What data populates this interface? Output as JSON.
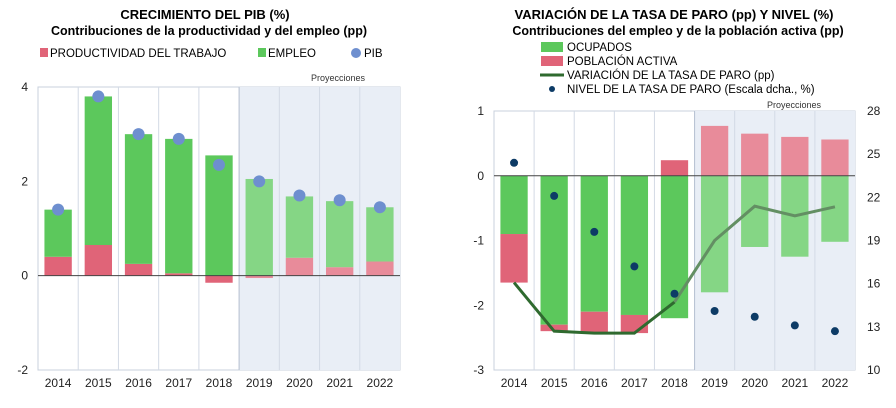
{
  "charts": [
    {
      "id": "gdp",
      "title": "CRECIMIENTO DEL PIB (%)",
      "subtitle": "Contribuciones de la productividad y del empleo (pp)",
      "projections_label": "Proyecciones",
      "legend": [
        {
          "label": "PRODUCTIVIDAD DEL TRABAJO",
          "color": "#e06478",
          "shape": "square"
        },
        {
          "label": "EMPLEO",
          "color": "#5cc85c",
          "shape": "square"
        },
        {
          "label": "PIB",
          "color": "#6e8fcf",
          "shape": "circle"
        }
      ]
    },
    {
      "id": "unemployment",
      "title": "VARIACIÓN DE LA TASA DE PARO (pp) Y NIVEL (%)",
      "subtitle": "Contribuciones del empleo y de la población activa (pp)",
      "projections_label": "Proyecciones",
      "legend": [
        {
          "label": "OCUPADOS",
          "color": "#5cc85c",
          "shape": "square"
        },
        {
          "label": "POBLACIÓN ACTIVA",
          "color": "#e06478",
          "shape": "square"
        },
        {
          "label": "VARIACIÓN DE LA TASA DE PARO (pp)",
          "color": "#2f6a2f",
          "shape": "line"
        },
        {
          "label": "NIVEL DE LA TASA DE PARO (Escala dcha., %)",
          "color": "#0d3b66",
          "shape": "circle"
        }
      ]
    }
  ],
  "chart_data": [
    {
      "type": "bar",
      "stacked": true,
      "categories": [
        "2014",
        "2015",
        "2016",
        "2017",
        "2018",
        "2019",
        "2020",
        "2021",
        "2022"
      ],
      "projection_from": "2019",
      "ylim": [
        -2,
        4
      ],
      "yticks": [
        -2,
        0,
        2,
        4
      ],
      "series": [
        {
          "name": "PRODUCTIVIDAD DEL TRABAJO",
          "kind": "bar",
          "color": "#e06478",
          "values": [
            0.4,
            0.65,
            0.25,
            0.05,
            -0.15,
            -0.05,
            0.38,
            0.18,
            0.3
          ]
        },
        {
          "name": "EMPLEO",
          "kind": "bar",
          "color": "#5cc85c",
          "values": [
            1.0,
            3.15,
            2.75,
            2.85,
            2.55,
            2.05,
            1.3,
            1.4,
            1.15
          ]
        },
        {
          "name": "PIB",
          "kind": "dot",
          "color": "#6e8fcf",
          "values": [
            1.4,
            3.8,
            3.0,
            2.9,
            2.35,
            2.0,
            1.7,
            1.6,
            1.45
          ]
        }
      ]
    },
    {
      "type": "bar",
      "stacked": true,
      "categories": [
        "2014",
        "2015",
        "2016",
        "2017",
        "2018",
        "2019",
        "2020",
        "2021",
        "2022"
      ],
      "projection_from": "2019",
      "ylim": [
        -3,
        1
      ],
      "yticks": [
        -3,
        -2,
        -1,
        0,
        1
      ],
      "ylim_right": [
        10,
        28
      ],
      "yticks_right": [
        10,
        13,
        16,
        19,
        22,
        25,
        28
      ],
      "series": [
        {
          "name": "OCUPADOS",
          "kind": "bar",
          "color": "#5cc85c",
          "values": [
            -0.9,
            -2.3,
            -2.1,
            -2.15,
            -2.2,
            -1.8,
            -1.1,
            -1.25,
            -1.02
          ]
        },
        {
          "name": "POBLACIÓN ACTIVA",
          "kind": "bar",
          "color": "#e06478",
          "values": [
            -0.75,
            -0.1,
            -0.33,
            -0.28,
            0.24,
            0.77,
            0.65,
            0.6,
            0.56
          ]
        },
        {
          "name": "VARIACIÓN DE LA TASA DE PARO (pp)",
          "kind": "line",
          "color": "#2f6a2f",
          "values": [
            -1.65,
            -2.4,
            -2.43,
            -2.43,
            -1.95,
            -1.0,
            -0.47,
            -0.62,
            -0.48
          ]
        },
        {
          "name": "NIVEL DE LA TASA DE PARO (Escala dcha., %)",
          "kind": "dot",
          "axis": "right",
          "color": "#0d3b66",
          "values": [
            24.4,
            22.1,
            19.6,
            17.2,
            15.3,
            14.1,
            13.7,
            13.1,
            12.7
          ]
        }
      ]
    }
  ]
}
